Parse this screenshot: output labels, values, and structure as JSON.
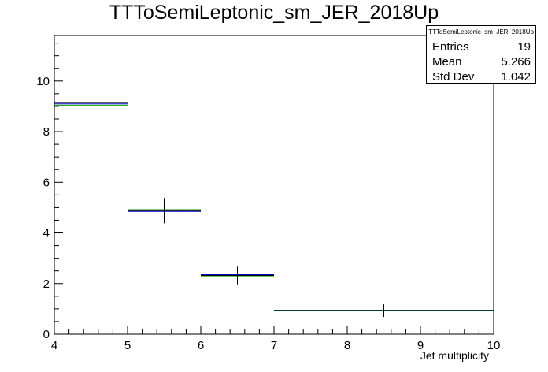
{
  "chart_data": {
    "type": "histogram",
    "title": "TTToSemiLeptonic_sm_JER_2018Up",
    "xlabel": "Jet multiplicity",
    "ylabel": "",
    "xlim": [
      4,
      10
    ],
    "ylim": [
      0,
      11.8
    ],
    "x_ticks": [
      "4",
      "5",
      "6",
      "7",
      "8",
      "9",
      "10"
    ],
    "y_ticks": [
      "0",
      "2",
      "4",
      "6",
      "8",
      "10"
    ],
    "grid": false,
    "bins": [
      {
        "low": 4,
        "high": 5,
        "center": 4.5,
        "value": 9.15,
        "error": 1.3,
        "blue": 9.1,
        "green": 9.05
      },
      {
        "low": 5,
        "high": 6,
        "center": 5.5,
        "value": 4.88,
        "error": 0.5,
        "blue": 4.85,
        "green": 4.92
      },
      {
        "low": 6,
        "high": 7,
        "center": 6.5,
        "value": 2.32,
        "error": 0.35,
        "blue": 2.35,
        "green": 2.3
      },
      {
        "low": 7,
        "high": 10,
        "center": 8.5,
        "value": 0.93,
        "error": 0.25,
        "blue": 0.95,
        "green": 0.94
      }
    ],
    "colors": {
      "data": "#000000",
      "line_a": "#0000cc",
      "line_b": "#00aa00"
    },
    "stats": {
      "name": "TTToSemiLeptonic_sm_JER_2018Up",
      "rows": [
        {
          "label": "Entries",
          "value": "19"
        },
        {
          "label": "Mean",
          "value": "5.266"
        },
        {
          "label": "Std Dev",
          "value": "1.042"
        }
      ]
    }
  }
}
